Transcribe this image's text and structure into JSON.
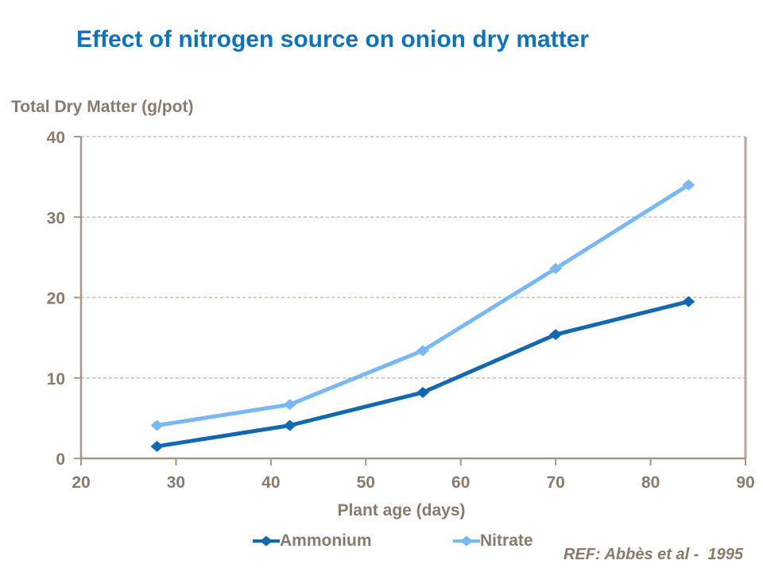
{
  "title": "Effect of nitrogen source on onion dry matter",
  "ref_note": "REF: Abbès et al -  1995",
  "colors": {
    "title_blue": "#0e72bc",
    "text_brown": "#8a7a6a",
    "axis": "#a49888",
    "plot_border": "#b1a79b",
    "gridline": "#c9c0b3",
    "series_ammonium": "#1268b1",
    "series_nitrate": "#78b9f3"
  },
  "chart_data": {
    "type": "line",
    "title": "Effect of nitrogen source on onion dry matter",
    "xlabel": "Plant age (days)",
    "ylabel": "Total Dry Matter (g/pot)",
    "x": [
      28,
      42,
      56,
      70,
      84
    ],
    "series": [
      {
        "name": "Ammonium",
        "color": "#1268b1",
        "values": [
          1.5,
          4.1,
          8.2,
          15.4,
          19.5
        ]
      },
      {
        "name": "Nitrate",
        "color": "#78b9f3",
        "values": [
          4.1,
          6.7,
          13.4,
          23.6,
          34.0
        ]
      }
    ],
    "xlim": [
      20,
      90
    ],
    "ylim": [
      0,
      40
    ],
    "x_ticks": [
      20,
      30,
      40,
      50,
      60,
      70,
      80,
      90
    ],
    "y_ticks": [
      0,
      10,
      20,
      30,
      40
    ],
    "grid": "horizontal-dashed",
    "legend_position": "bottom",
    "marker": "diamond"
  }
}
